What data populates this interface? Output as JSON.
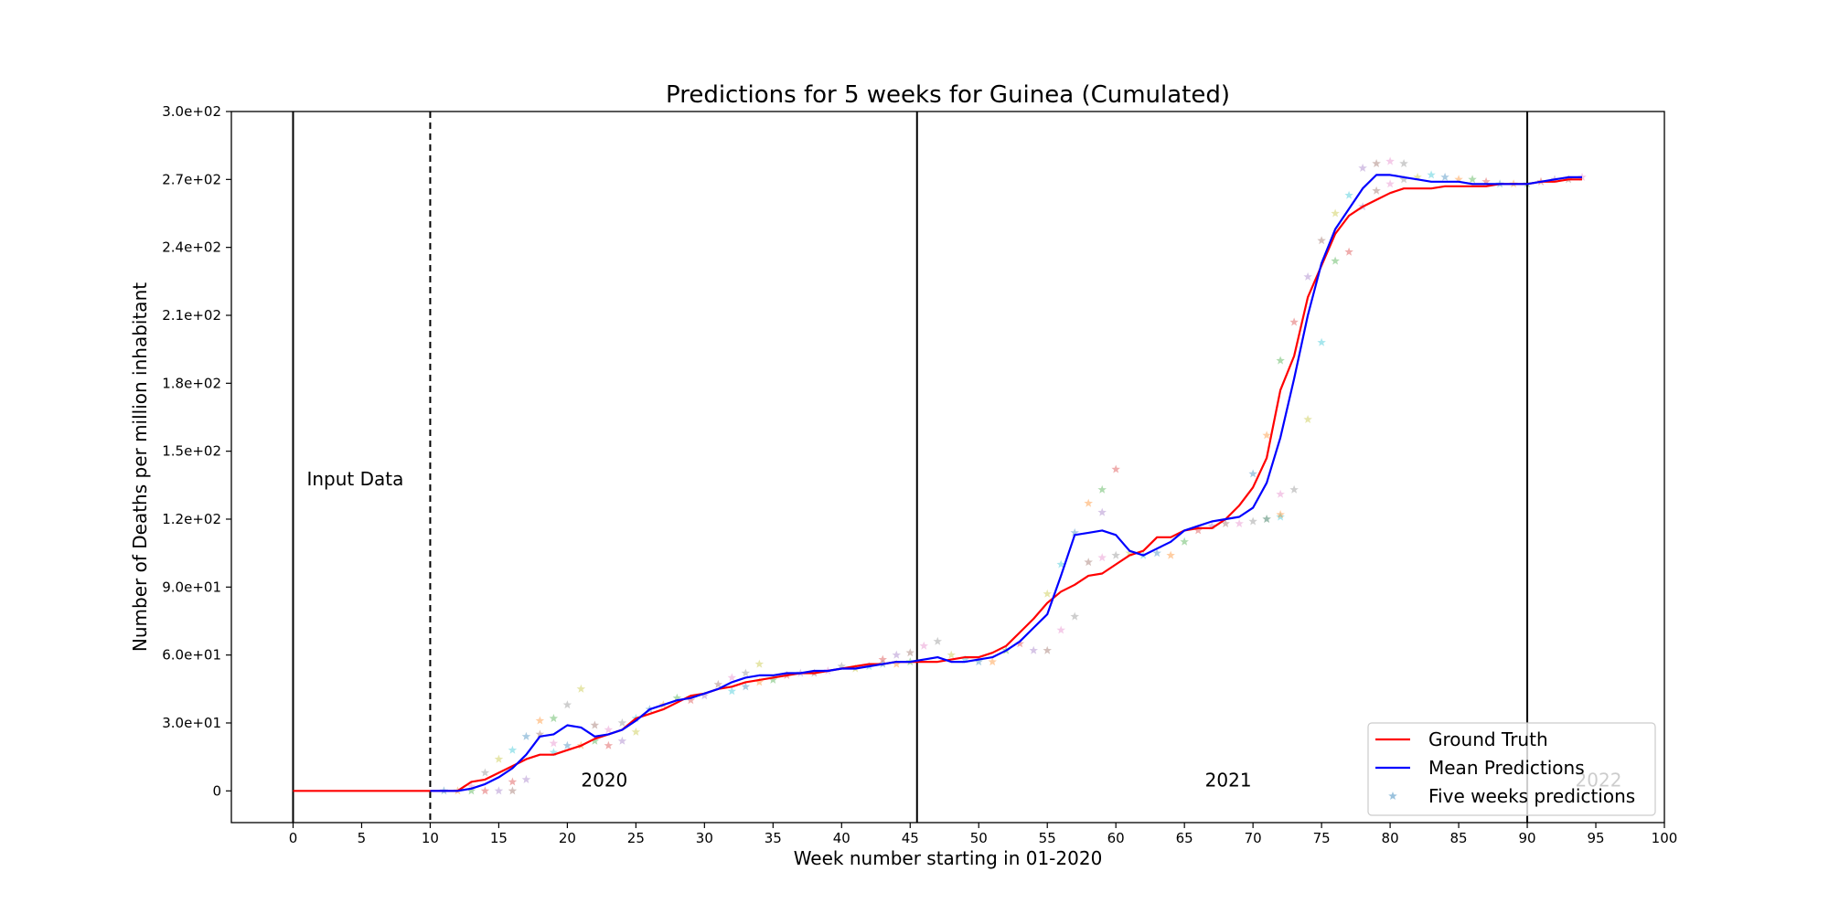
{
  "chart_data": {
    "type": "line",
    "title": "Predictions for 5 weeks for Guinea (Cumulated)",
    "xlabel": "Week number starting in 01-2020",
    "ylabel": "Number of Deaths per million inhabitant",
    "xlim": [
      -4.5,
      100
    ],
    "ylim": [
      -14,
      300
    ],
    "xticks": [
      0,
      5,
      10,
      15,
      20,
      25,
      30,
      35,
      40,
      45,
      50,
      55,
      60,
      65,
      70,
      75,
      80,
      85,
      90,
      95,
      100
    ],
    "yticks": [
      {
        "value": 0,
        "label": "0"
      },
      {
        "value": 30,
        "label": "3.0e+01"
      },
      {
        "value": 60,
        "label": "6.0e+01"
      },
      {
        "value": 90,
        "label": "9.0e+01"
      },
      {
        "value": 120,
        "label": "1.2e+02"
      },
      {
        "value": 150,
        "label": "1.5e+02"
      },
      {
        "value": 180,
        "label": "1.8e+02"
      },
      {
        "value": 210,
        "label": "2.1e+02"
      },
      {
        "value": 240,
        "label": "2.4e+02"
      },
      {
        "value": 270,
        "label": "2.7e+02"
      },
      {
        "value": 300,
        "label": "3.0e+02"
      }
    ],
    "grid": false,
    "legend_position": "bottom-right",
    "vlines": [
      {
        "x": 0,
        "style": "solid"
      },
      {
        "x": 10,
        "style": "dashed"
      },
      {
        "x": 45.5,
        "style": "solid"
      },
      {
        "x": 90,
        "style": "solid"
      }
    ],
    "annotations": [
      {
        "text": "Input Data",
        "x": 1,
        "y": 135
      },
      {
        "text": "2020",
        "x": 21,
        "y": 2
      },
      {
        "text": "2021",
        "x": 66.5,
        "y": 2
      },
      {
        "text": "2022",
        "x": 93.5,
        "y": 2
      }
    ],
    "series": [
      {
        "name": "Ground Truth",
        "color": "#ff0000",
        "style": "line",
        "x": [
          0,
          1,
          2,
          3,
          4,
          5,
          6,
          7,
          8,
          9,
          10,
          11,
          12,
          13,
          14,
          15,
          16,
          17,
          18,
          19,
          20,
          21,
          22,
          23,
          24,
          25,
          26,
          27,
          28,
          29,
          30,
          31,
          32,
          33,
          34,
          35,
          36,
          37,
          38,
          39,
          40,
          41,
          42,
          43,
          44,
          45,
          46,
          47,
          48,
          49,
          50,
          51,
          52,
          53,
          54,
          55,
          56,
          57,
          58,
          59,
          60,
          61,
          62,
          63,
          64,
          65,
          66,
          67,
          68,
          69,
          70,
          71,
          72,
          73,
          74,
          75,
          76,
          77,
          78,
          79,
          80,
          81,
          82,
          83,
          84,
          85,
          86,
          87,
          88,
          89,
          90,
          91,
          92,
          93,
          94
        ],
        "y": [
          0,
          0,
          0,
          0,
          0,
          0,
          0,
          0,
          0,
          0,
          0,
          0,
          0,
          4,
          5,
          8,
          11,
          14,
          16,
          16,
          18,
          20,
          23,
          25,
          27,
          32,
          34,
          36,
          39,
          42,
          43,
          45,
          46,
          48,
          49,
          50,
          51,
          52,
          52,
          53,
          54,
          55,
          56,
          56,
          57,
          57,
          57,
          57,
          58,
          59,
          59,
          61,
          64,
          70,
          76,
          83,
          88,
          91,
          95,
          96,
          100,
          104,
          106,
          112,
          112,
          115,
          116,
          116,
          120,
          126,
          134,
          147,
          177,
          192,
          218,
          232,
          246,
          254,
          258,
          261,
          264,
          266,
          266,
          266,
          267,
          267,
          267,
          267,
          268,
          268,
          268,
          269,
          269,
          270,
          270
        ]
      },
      {
        "name": "Mean Predictions",
        "color": "#0000ff",
        "style": "line",
        "x": [
          10,
          11,
          12,
          13,
          14,
          15,
          16,
          17,
          18,
          19,
          20,
          21,
          22,
          23,
          24,
          25,
          26,
          27,
          28,
          29,
          30,
          31,
          32,
          33,
          34,
          35,
          36,
          37,
          38,
          39,
          40,
          41,
          42,
          43,
          44,
          45,
          46,
          47,
          48,
          49,
          50,
          51,
          52,
          53,
          54,
          55,
          56,
          57,
          58,
          59,
          60,
          61,
          62,
          63,
          64,
          65,
          66,
          67,
          68,
          69,
          70,
          71,
          72,
          73,
          74,
          75,
          76,
          77,
          78,
          79,
          80,
          81,
          82,
          83,
          84,
          85,
          86,
          87,
          88,
          89,
          90,
          91,
          92,
          93,
          94
        ],
        "y": [
          0,
          0,
          0,
          1,
          3,
          6,
          10,
          16,
          24,
          25,
          29,
          28,
          24,
          25,
          27,
          31,
          36,
          38,
          40,
          41,
          43,
          45,
          48,
          50,
          51,
          51,
          52,
          52,
          53,
          53,
          54,
          54,
          55,
          56,
          57,
          57,
          58,
          59,
          57,
          57,
          58,
          59,
          62,
          66,
          72,
          78,
          95,
          113,
          114,
          115,
          113,
          106,
          104,
          107,
          110,
          115,
          117,
          119,
          120,
          121,
          125,
          136,
          156,
          182,
          210,
          233,
          248,
          257,
          266,
          272,
          272,
          271,
          270,
          269,
          269,
          269,
          268,
          268,
          268,
          268,
          268,
          269,
          270,
          271,
          271
        ]
      },
      {
        "name": "Five weeks predictions",
        "style": "markers",
        "colors": [
          "#1f77b4",
          "#ff7f0e",
          "#2ca02c",
          "#d62728",
          "#9467bd",
          "#8c564b",
          "#e377c2",
          "#7f7f7f",
          "#bcbd22",
          "#17becf"
        ],
        "points": [
          [
            11,
            0
          ],
          [
            12,
            0
          ],
          [
            13,
            0
          ],
          [
            14,
            0
          ],
          [
            15,
            0
          ],
          [
            16,
            0
          ],
          [
            13,
            2
          ],
          [
            14,
            8
          ],
          [
            15,
            14
          ],
          [
            16,
            18
          ],
          [
            17,
            24
          ],
          [
            18,
            31
          ],
          [
            19,
            32
          ],
          [
            16,
            4
          ],
          [
            17,
            5
          ],
          [
            18,
            25
          ],
          [
            19,
            21
          ],
          [
            20,
            38
          ],
          [
            21,
            45
          ],
          [
            19,
            17
          ],
          [
            20,
            20
          ],
          [
            21,
            20
          ],
          [
            22,
            22
          ],
          [
            23,
            20
          ],
          [
            24,
            22
          ],
          [
            22,
            29
          ],
          [
            23,
            27
          ],
          [
            24,
            30
          ],
          [
            25,
            26
          ],
          [
            25,
            32
          ],
          [
            26,
            36
          ],
          [
            27,
            38
          ],
          [
            28,
            41
          ],
          [
            29,
            40
          ],
          [
            30,
            42
          ],
          [
            31,
            47
          ],
          [
            32,
            50
          ],
          [
            33,
            52
          ],
          [
            34,
            56
          ],
          [
            32,
            44
          ],
          [
            33,
            46
          ],
          [
            34,
            48
          ],
          [
            35,
            49
          ],
          [
            36,
            51
          ],
          [
            37,
            52
          ],
          [
            38,
            52
          ],
          [
            39,
            53
          ],
          [
            40,
            55
          ],
          [
            41,
            54
          ],
          [
            42,
            55
          ],
          [
            43,
            56
          ],
          [
            44,
            56
          ],
          [
            45,
            57
          ],
          [
            43,
            58
          ],
          [
            44,
            60
          ],
          [
            45,
            61
          ],
          [
            46,
            64
          ],
          [
            47,
            66
          ],
          [
            48,
            60
          ],
          [
            49,
            58
          ],
          [
            50,
            57
          ],
          [
            51,
            57
          ],
          [
            52,
            62
          ],
          [
            53,
            65
          ],
          [
            54,
            62
          ],
          [
            55,
            62
          ],
          [
            56,
            71
          ],
          [
            57,
            77
          ],
          [
            55,
            87
          ],
          [
            56,
            100
          ],
          [
            57,
            114
          ],
          [
            58,
            127
          ],
          [
            59,
            133
          ],
          [
            60,
            142
          ],
          [
            59,
            123
          ],
          [
            58,
            101
          ],
          [
            59,
            103
          ],
          [
            60,
            104
          ],
          [
            61,
            105
          ],
          [
            62,
            104
          ],
          [
            63,
            105
          ],
          [
            64,
            104
          ],
          [
            65,
            110
          ],
          [
            66,
            115
          ],
          [
            67,
            117
          ],
          [
            68,
            118
          ],
          [
            69,
            118
          ],
          [
            70,
            119
          ],
          [
            71,
            120
          ],
          [
            72,
            121
          ],
          [
            70,
            140
          ],
          [
            71,
            157
          ],
          [
            72,
            190
          ],
          [
            73,
            207
          ],
          [
            74,
            227
          ],
          [
            75,
            243
          ],
          [
            72,
            131
          ],
          [
            73,
            133
          ],
          [
            74,
            164
          ],
          [
            75,
            198
          ],
          [
            71,
            120
          ],
          [
            72,
            122
          ],
          [
            76,
            234
          ],
          [
            77,
            238
          ],
          [
            78,
            258
          ],
          [
            79,
            265
          ],
          [
            80,
            268
          ],
          [
            81,
            270
          ],
          [
            82,
            271
          ],
          [
            83,
            272
          ],
          [
            84,
            271
          ],
          [
            85,
            270
          ],
          [
            86,
            270
          ],
          [
            87,
            269
          ],
          [
            78,
            275
          ],
          [
            79,
            277
          ],
          [
            80,
            278
          ],
          [
            81,
            277
          ],
          [
            76,
            255
          ],
          [
            77,
            263
          ],
          [
            88,
            268
          ],
          [
            89,
            268
          ],
          [
            90,
            268
          ],
          [
            91,
            269
          ],
          [
            92,
            270
          ],
          [
            93,
            270
          ],
          [
            94,
            271
          ]
        ]
      }
    ]
  }
}
